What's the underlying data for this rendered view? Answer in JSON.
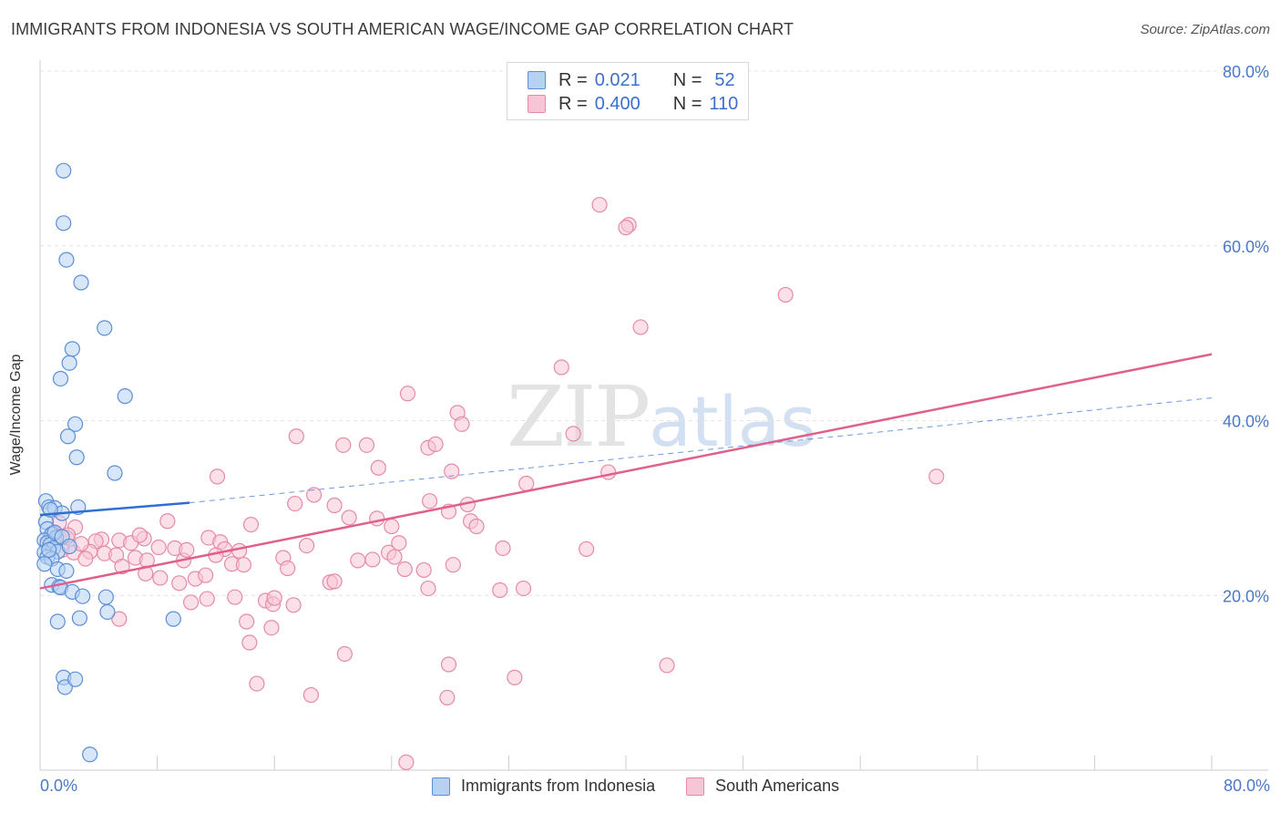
{
  "title": "IMMIGRANTS FROM INDONESIA VS SOUTH AMERICAN WAGE/INCOME GAP CORRELATION CHART",
  "source": "Source: ZipAtlas.com",
  "watermark": {
    "zip": "ZIP",
    "atlas": "atlas"
  },
  "legend": {
    "row1": {
      "r_label": "R =",
      "r_value": "0.021",
      "n_label": "N =",
      "n_value": "52"
    },
    "row2": {
      "r_label": "R =",
      "r_value": "0.400",
      "n_label": "N =",
      "n_value": "110"
    }
  },
  "bottom_legend": {
    "series1": "Immigrants from Indonesia",
    "series2": "South Americans"
  },
  "colors": {
    "blue_fill": "#b7d1f2",
    "blue_stroke": "#5b8fd6",
    "blue_line": "#2f6fd0",
    "pink_fill": "#f7c6d6",
    "pink_stroke": "#e58aa8",
    "pink_line": "#e0608c",
    "grid": "#e4e4e4",
    "axis_text": "#4a78c8"
  },
  "chart_data": {
    "type": "scatter",
    "title": "IMMIGRANTS FROM INDONESIA VS SOUTH AMERICAN WAGE/INCOME GAP CORRELATION CHART",
    "xlabel": "",
    "ylabel": "Wage/Income Gap",
    "xlim": [
      0,
      80
    ],
    "ylim": [
      0,
      80
    ],
    "x_tick_labels": [
      "0.0%",
      "80.0%"
    ],
    "y_ticks": [
      20,
      40,
      60,
      80
    ],
    "y_tick_labels": [
      "20.0%",
      "40.0%",
      "60.0%",
      "80.0%"
    ],
    "legend_position": "top-center",
    "series": [
      {
        "name": "Immigrants from Indonesia",
        "R": 0.021,
        "N": 52,
        "trend": {
          "x0": 0,
          "y0": 29.2,
          "x1": 10.2,
          "y1": 30.6,
          "dashed_to_x": 80,
          "dashed_to_y": 42.6
        },
        "points": [
          [
            1.6,
            68.6
          ],
          [
            1.6,
            62.6
          ],
          [
            1.8,
            58.4
          ],
          [
            2.8,
            55.8
          ],
          [
            4.4,
            50.6
          ],
          [
            2.2,
            48.2
          ],
          [
            2.0,
            46.6
          ],
          [
            1.4,
            44.8
          ],
          [
            5.8,
            42.8
          ],
          [
            2.4,
            39.6
          ],
          [
            1.9,
            38.2
          ],
          [
            2.5,
            35.8
          ],
          [
            5.1,
            34.0
          ],
          [
            0.4,
            30.8
          ],
          [
            0.6,
            30.1
          ],
          [
            1.0,
            30.0
          ],
          [
            2.6,
            30.1
          ],
          [
            1.5,
            29.4
          ],
          [
            0.4,
            28.4
          ],
          [
            0.5,
            27.6
          ],
          [
            0.8,
            27.0
          ],
          [
            1.1,
            26.6
          ],
          [
            0.3,
            26.3
          ],
          [
            0.5,
            26.0
          ],
          [
            0.7,
            25.8
          ],
          [
            0.9,
            25.4
          ],
          [
            1.2,
            25.0
          ],
          [
            0.3,
            24.9
          ],
          [
            0.5,
            24.4
          ],
          [
            0.8,
            24.2
          ],
          [
            0.3,
            23.6
          ],
          [
            1.2,
            23.0
          ],
          [
            1.8,
            22.8
          ],
          [
            0.8,
            21.2
          ],
          [
            1.3,
            21.0
          ],
          [
            1.4,
            20.9
          ],
          [
            2.2,
            20.4
          ],
          [
            2.9,
            19.9
          ],
          [
            4.5,
            19.8
          ],
          [
            4.6,
            18.1
          ],
          [
            1.2,
            17.0
          ],
          [
            2.7,
            17.4
          ],
          [
            9.1,
            17.3
          ],
          [
            1.6,
            10.6
          ],
          [
            1.7,
            9.5
          ],
          [
            2.4,
            10.4
          ],
          [
            3.4,
            1.8
          ],
          [
            0.6,
            25.2
          ],
          [
            1.0,
            27.2
          ],
          [
            1.5,
            26.7
          ],
          [
            0.7,
            29.8
          ],
          [
            2.0,
            25.6
          ]
        ]
      },
      {
        "name": "South Americans",
        "R": 0.4,
        "N": 110,
        "trend": {
          "x0": 0,
          "y0": 20.8,
          "x1": 80,
          "y1": 47.6
        },
        "points": [
          [
            38.2,
            64.7
          ],
          [
            40.2,
            62.4
          ],
          [
            40.0,
            62.1
          ],
          [
            50.9,
            54.4
          ],
          [
            41.0,
            50.7
          ],
          [
            35.6,
            46.1
          ],
          [
            25.1,
            43.1
          ],
          [
            28.5,
            40.9
          ],
          [
            28.8,
            39.6
          ],
          [
            36.4,
            38.5
          ],
          [
            17.5,
            38.2
          ],
          [
            20.7,
            37.2
          ],
          [
            22.3,
            37.2
          ],
          [
            26.5,
            36.9
          ],
          [
            27.0,
            37.3
          ],
          [
            23.1,
            34.6
          ],
          [
            28.1,
            34.2
          ],
          [
            38.8,
            34.1
          ],
          [
            12.1,
            33.6
          ],
          [
            61.2,
            33.6
          ],
          [
            33.2,
            32.8
          ],
          [
            18.7,
            31.5
          ],
          [
            17.4,
            30.5
          ],
          [
            20.1,
            30.3
          ],
          [
            26.6,
            30.8
          ],
          [
            29.2,
            30.4
          ],
          [
            27.9,
            29.6
          ],
          [
            21.1,
            28.9
          ],
          [
            23.0,
            28.8
          ],
          [
            29.4,
            28.5
          ],
          [
            29.8,
            27.9
          ],
          [
            8.7,
            28.5
          ],
          [
            14.4,
            28.1
          ],
          [
            24.0,
            27.9
          ],
          [
            1.3,
            28.3
          ],
          [
            2.4,
            27.8
          ],
          [
            0.9,
            27.1
          ],
          [
            1.3,
            26.7
          ],
          [
            1.8,
            26.6
          ],
          [
            4.2,
            26.4
          ],
          [
            5.4,
            26.3
          ],
          [
            6.2,
            26.0
          ],
          [
            7.1,
            26.5
          ],
          [
            3.8,
            26.2
          ],
          [
            11.5,
            26.6
          ],
          [
            12.3,
            26.1
          ],
          [
            24.5,
            26.0
          ],
          [
            18.2,
            25.7
          ],
          [
            8.1,
            25.5
          ],
          [
            9.2,
            25.4
          ],
          [
            12.6,
            25.3
          ],
          [
            13.6,
            25.1
          ],
          [
            1.5,
            25.2
          ],
          [
            2.3,
            24.9
          ],
          [
            3.4,
            25.0
          ],
          [
            4.4,
            24.8
          ],
          [
            5.2,
            24.6
          ],
          [
            6.5,
            24.3
          ],
          [
            7.3,
            24.0
          ],
          [
            9.8,
            24.0
          ],
          [
            13.1,
            23.6
          ],
          [
            13.9,
            23.5
          ],
          [
            16.6,
            24.3
          ],
          [
            21.7,
            24.0
          ],
          [
            22.7,
            24.1
          ],
          [
            23.8,
            24.9
          ],
          [
            24.2,
            24.4
          ],
          [
            31.6,
            25.4
          ],
          [
            37.3,
            25.3
          ],
          [
            16.9,
            23.1
          ],
          [
            24.9,
            23.0
          ],
          [
            28.2,
            23.5
          ],
          [
            5.6,
            23.3
          ],
          [
            7.2,
            22.5
          ],
          [
            8.2,
            22.0
          ],
          [
            9.5,
            21.4
          ],
          [
            10.6,
            21.9
          ],
          [
            11.3,
            22.3
          ],
          [
            19.8,
            21.5
          ],
          [
            20.1,
            21.6
          ],
          [
            26.5,
            20.8
          ],
          [
            31.4,
            20.6
          ],
          [
            33.0,
            20.8
          ],
          [
            10.3,
            19.2
          ],
          [
            11.4,
            19.6
          ],
          [
            13.3,
            19.8
          ],
          [
            15.4,
            19.4
          ],
          [
            15.9,
            19.0
          ],
          [
            16.0,
            19.7
          ],
          [
            17.3,
            18.9
          ],
          [
            14.1,
            17.0
          ],
          [
            5.4,
            17.3
          ],
          [
            15.8,
            16.3
          ],
          [
            14.3,
            14.6
          ],
          [
            20.8,
            13.3
          ],
          [
            27.9,
            12.1
          ],
          [
            42.8,
            12.0
          ],
          [
            32.4,
            10.6
          ],
          [
            14.8,
            9.9
          ],
          [
            18.5,
            8.6
          ],
          [
            27.8,
            8.3
          ],
          [
            25.0,
            0.9
          ],
          [
            0.5,
            26.1
          ],
          [
            1.9,
            26.9
          ],
          [
            2.8,
            25.9
          ],
          [
            3.1,
            24.2
          ],
          [
            6.8,
            26.9
          ],
          [
            10.0,
            25.2
          ],
          [
            12.0,
            24.6
          ],
          [
            26.2,
            22.9
          ]
        ]
      }
    ]
  }
}
